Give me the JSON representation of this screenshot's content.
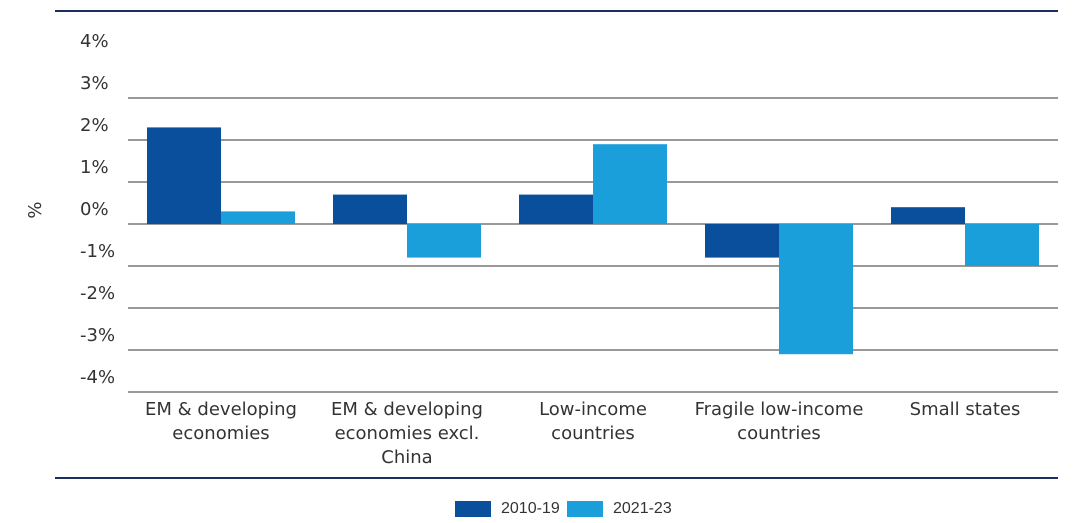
{
  "chart_data": {
    "type": "bar",
    "y_label": "%",
    "categories": [
      "EM & developing economies",
      "EM & developing economies excl. China",
      "Low-income countries",
      "Fragile low-income countries",
      "Small states"
    ],
    "series": [
      {
        "name": "2010-19",
        "color": "#0a4f9c",
        "values": [
          2.3,
          0.7,
          0.7,
          -0.8,
          0.4
        ]
      },
      {
        "name": "2021-23",
        "color": "#1b9fdb",
        "values": [
          0.3,
          -0.8,
          1.9,
          -3.1,
          -1.0
        ]
      }
    ],
    "ylim": [
      -4,
      4
    ],
    "yticks": [
      {
        "value": 4,
        "label": "4%"
      },
      {
        "value": 3,
        "label": "3%"
      },
      {
        "value": 2,
        "label": "2%"
      },
      {
        "value": 1,
        "label": "1%"
      },
      {
        "value": 0,
        "label": "0%"
      },
      {
        "value": -1,
        "label": "-1%"
      },
      {
        "value": -2,
        "label": "-2%"
      },
      {
        "value": -3,
        "label": "-3%"
      },
      {
        "value": -4,
        "label": "-4%"
      }
    ],
    "grid": true
  }
}
